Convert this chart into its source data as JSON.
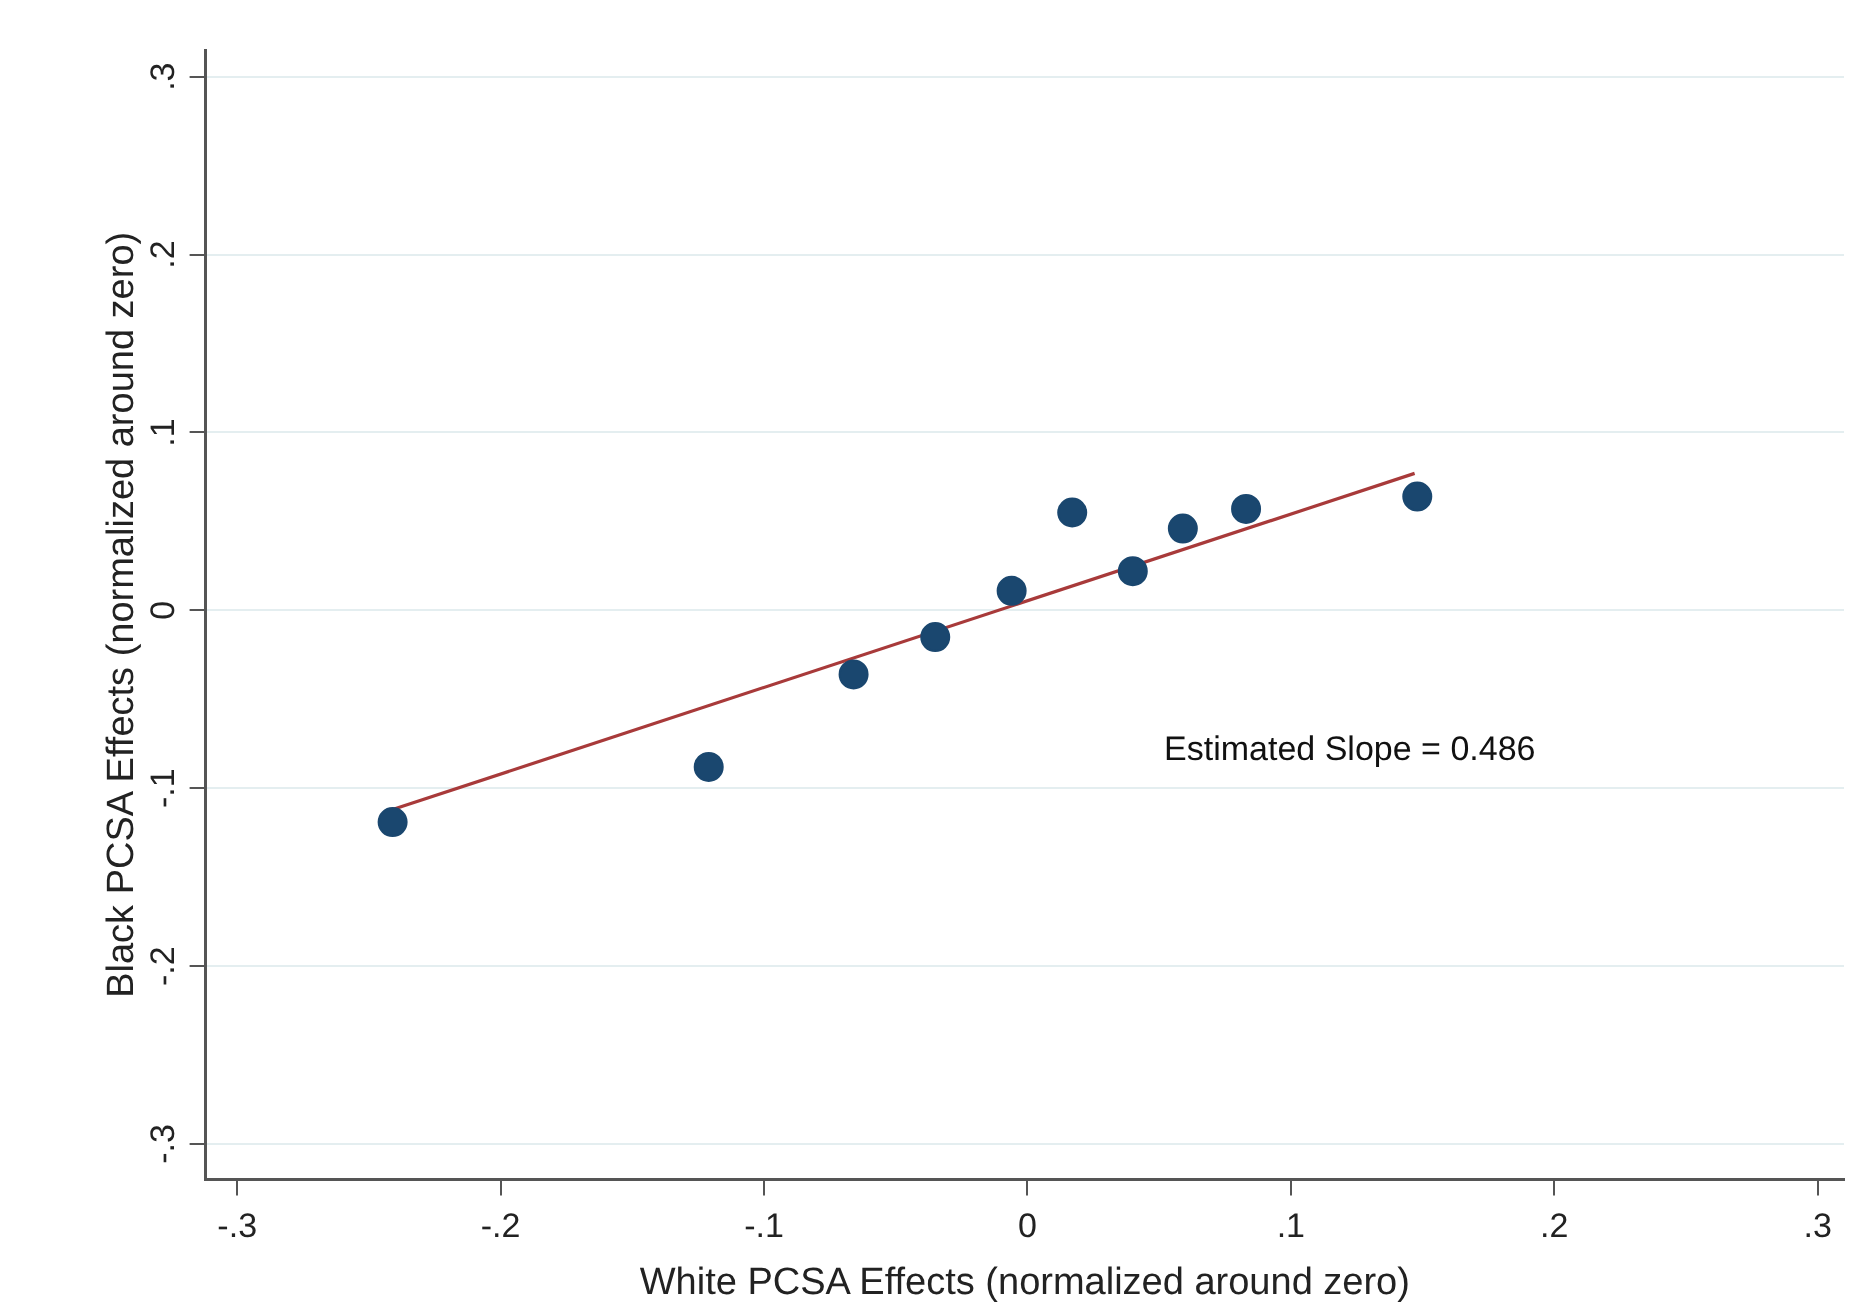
{
  "chart_data": {
    "type": "scatter",
    "xlabel": "White PCSA Effects (normalized around zero)",
    "ylabel": "Black PCSA Effects (normalized around zero)",
    "xlim": [
      -0.312,
      0.31
    ],
    "ylim": [
      -0.32,
      0.315
    ],
    "xticks": [
      {
        "value": -0.3,
        "label": "-.3"
      },
      {
        "value": -0.2,
        "label": "-.2"
      },
      {
        "value": -0.1,
        "label": "-.1"
      },
      0,
      {
        "value": 0.1,
        "label": ".1"
      },
      {
        "value": 0.2,
        "label": ".2"
      },
      {
        "value": 0.3,
        "label": ".3"
      }
    ],
    "yticks": [
      {
        "value": -0.3,
        "label": "-.3"
      },
      {
        "value": -0.2,
        "label": "-.2"
      },
      {
        "value": -0.1,
        "label": "-.1"
      },
      0,
      {
        "value": 0.1,
        "label": ".1"
      },
      {
        "value": 0.2,
        "label": ".2"
      },
      {
        "value": 0.3,
        "label": ".3"
      }
    ],
    "grid": "y",
    "marker": "circle",
    "series": [
      {
        "color": "#1a476f",
        "x": [
          -0.241,
          -0.121,
          -0.066,
          -0.035,
          -0.006,
          0.017,
          0.04,
          0.059,
          0.083,
          0.148
        ],
        "values": [
          -0.119,
          -0.088,
          -0.036,
          -0.015,
          0.011,
          0.055,
          0.022,
          0.046,
          0.057,
          0.064
        ]
      },
      {
        "type": "line",
        "marker": "none",
        "color": "#a83a3a",
        "x": [
          -0.241,
          0.147
        ],
        "values": [
          -0.112,
          0.077
        ]
      }
    ],
    "annotations": [
      "Estimated Slope = 0.486"
    ]
  }
}
